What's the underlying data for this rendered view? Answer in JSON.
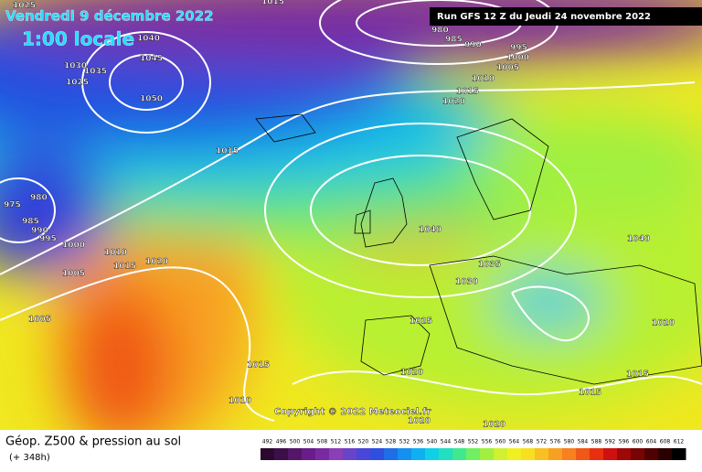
{
  "header": {
    "date": "Vendredi 9 décembre 2022",
    "time": "1:00 locale",
    "run": "Run GFS 12 Z du Jeudi 24 novembre 2022"
  },
  "map": {
    "copyright": "Copyright © 2022 Meteociel.fr",
    "isobar_labels": [
      "1025",
      "1015",
      "1040",
      "1045",
      "1030",
      "1035",
      "1025",
      "1050",
      "980",
      "985",
      "990",
      "995",
      "1000",
      "1005",
      "1010",
      "1015",
      "1020",
      "1015",
      "980",
      "975",
      "985",
      "990",
      "995",
      "1000",
      "1010",
      "1015",
      "1020",
      "1005",
      "1005",
      "1040",
      "1035",
      "1030",
      "1025",
      "1040",
      "1020",
      "1015",
      "1020",
      "1015",
      "1015",
      "1010",
      "1020",
      "1020"
    ]
  },
  "footer": {
    "title": "Géop. Z500 & pression au sol",
    "lead": "(+ 348h)"
  },
  "colorbar": {
    "labels": [
      492,
      496,
      500,
      504,
      508,
      512,
      516,
      520,
      524,
      528,
      532,
      536,
      540,
      544,
      548,
      552,
      556,
      560,
      564,
      568,
      572,
      576,
      580,
      584,
      588,
      592,
      596,
      600,
      604,
      608,
      612
    ],
    "colors": [
      "#2a0a2e",
      "#3d0f4a",
      "#55166a",
      "#6a1d8a",
      "#7a2aa0",
      "#8a3fb6",
      "#6a44c8",
      "#4a46d8",
      "#2f4fe0",
      "#1f6ee8",
      "#1590f0",
      "#10b0f0",
      "#10d0e8",
      "#20e0c0",
      "#40e890",
      "#70f060",
      "#a0f040",
      "#d0f030",
      "#f0f020",
      "#f8e020",
      "#f8c020",
      "#f8a020",
      "#f88020",
      "#f05818",
      "#e83010",
      "#d01010",
      "#a00808",
      "#780404",
      "#500000",
      "#2a0000",
      "#000000"
    ]
  }
}
